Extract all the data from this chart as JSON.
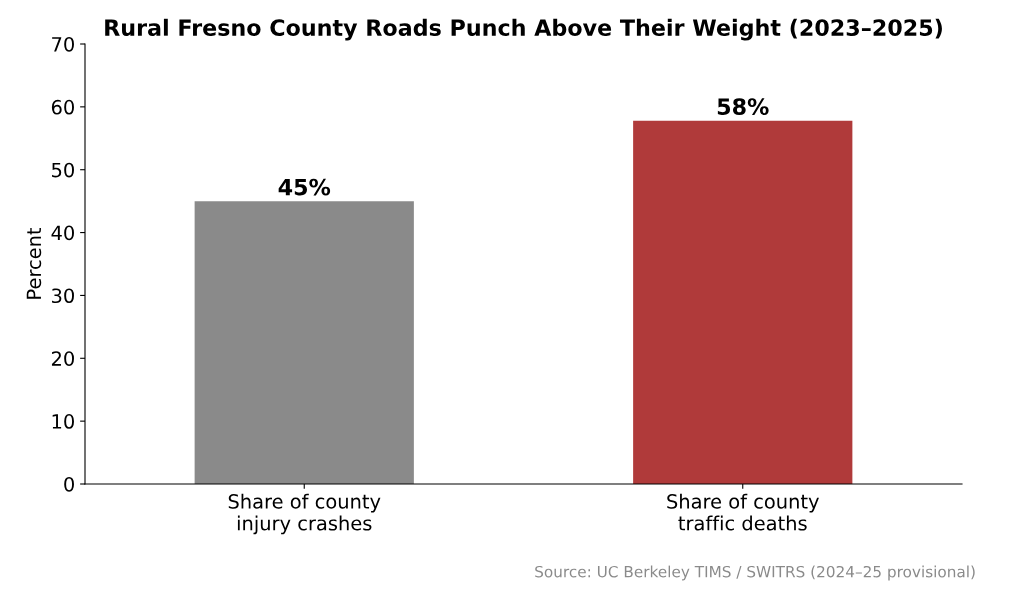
{
  "chart_data": {
    "type": "bar",
    "title": "Rural Fresno County Roads Punch Above Their Weight (2023–2025)",
    "ylabel": "Percent",
    "categories": [
      "Share of county\ninjury crashes",
      "Share of county\ntraffic deaths"
    ],
    "values": [
      45,
      57.8
    ],
    "colors": [
      "#8a8a8a",
      "#b03a3a"
    ],
    "value_labels": [
      "45%",
      "58%"
    ],
    "ylim": [
      0,
      70
    ],
    "yticks": [
      0,
      10,
      20,
      30,
      40,
      50,
      60,
      70
    ],
    "grid": false,
    "legend": false,
    "annotations": [
      "Source: UC Berkeley TIMS / SWITRS (2024–25 provisional)"
    ]
  }
}
